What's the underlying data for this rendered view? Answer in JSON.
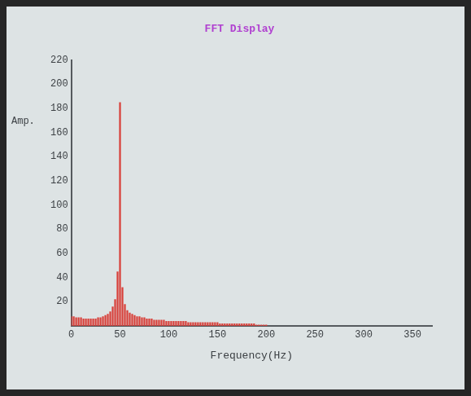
{
  "chart_data": {
    "type": "bar",
    "title": "FFT Display",
    "xlabel": "Frequency(Hz)",
    "ylabel": "Amp.",
    "x": [
      0,
      2.5,
      5,
      7.5,
      10,
      12.5,
      15,
      17.5,
      20,
      22.5,
      25,
      27.5,
      30,
      32.5,
      35,
      37.5,
      40,
      42.5,
      45,
      47.5,
      50,
      52.5,
      55,
      57.5,
      60,
      62.5,
      65,
      67.5,
      70,
      72.5,
      75,
      77.5,
      80,
      82.5,
      85,
      87.5,
      90,
      92.5,
      95,
      97.5,
      100,
      102.5,
      105,
      107.5,
      110,
      112.5,
      115,
      117.5,
      120,
      122.5,
      125,
      127.5,
      130,
      132.5,
      135,
      137.5,
      140,
      142.5,
      145,
      147.5,
      150,
      152.5,
      155,
      157.5,
      160,
      162.5,
      165,
      167.5,
      170,
      172.5,
      175,
      177.5,
      180,
      182.5,
      185,
      187.5,
      190,
      192.5,
      195,
      197.5,
      200
    ],
    "values": [
      8,
      8,
      7,
      7,
      7,
      6,
      6,
      6,
      6,
      6,
      6,
      7,
      7,
      8,
      9,
      10,
      12,
      16,
      22,
      45,
      185,
      32,
      18,
      13,
      11,
      10,
      9,
      8,
      8,
      7,
      7,
      6,
      6,
      6,
      5,
      5,
      5,
      5,
      5,
      4,
      4,
      4,
      4,
      4,
      4,
      4,
      4,
      4,
      3,
      3,
      3,
      3,
      3,
      3,
      3,
      3,
      3,
      3,
      3,
      3,
      3,
      2,
      2,
      2,
      2,
      2,
      2,
      2,
      2,
      2,
      2,
      2,
      2,
      2,
      2,
      2,
      1,
      1,
      1,
      1,
      1
    ],
    "color": "#d8403a",
    "xlim": [
      0,
      370
    ],
    "xticks": [
      0,
      50,
      100,
      150,
      200,
      250,
      300,
      350
    ],
    "ylim": [
      0,
      220
    ],
    "yticks": [
      20,
      40,
      60,
      80,
      100,
      120,
      140,
      160,
      180,
      200,
      220
    ],
    "grid": false
  }
}
